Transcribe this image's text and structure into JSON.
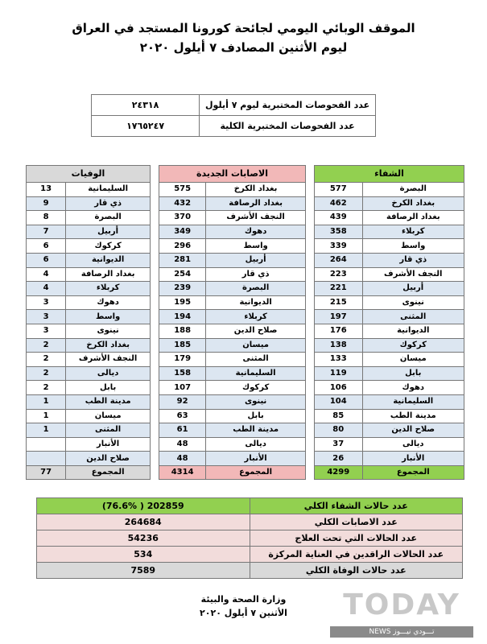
{
  "header": {
    "line1": "الموقف الوبائي اليومي لجائحة كورونا المستجد في العراق",
    "line2": "ليوم الأثنين المصادف ٧ أيلول ٢٠٢٠"
  },
  "tests": [
    {
      "label": "عدد الفحوصات المختبرية ليوم ٧ أيلول",
      "value": "٢٤٣١٨"
    },
    {
      "label": "عدد الفحوصات المختبرية الكلية",
      "value": "١٧٦٥٢٤٧"
    }
  ],
  "colors": {
    "recovered": "#92d050",
    "cases": "#f2b8b8",
    "deaths": "#d9d9d9",
    "alt_row": "#dce6f1",
    "summary_pink": "#f2dcdb"
  },
  "recovered": {
    "title": "الشفاء",
    "total_label": "المجموع",
    "total": "4299",
    "rows": [
      [
        "البصرة",
        "577"
      ],
      [
        "بغداد الكرخ",
        "462"
      ],
      [
        "بغداد الرصافة",
        "439"
      ],
      [
        "كربلاء",
        "358"
      ],
      [
        "واسط",
        "339"
      ],
      [
        "ذي قار",
        "264"
      ],
      [
        "النجف الأشرف",
        "223"
      ],
      [
        "أربيل",
        "221"
      ],
      [
        "نينوى",
        "215"
      ],
      [
        "المثنى",
        "197"
      ],
      [
        "الديوانية",
        "176"
      ],
      [
        "كركوك",
        "138"
      ],
      [
        "ميسان",
        "133"
      ],
      [
        "بابل",
        "119"
      ],
      [
        "دهوك",
        "106"
      ],
      [
        "السليمانية",
        "104"
      ],
      [
        "مدينة الطب",
        "85"
      ],
      [
        "صلاح الدين",
        "80"
      ],
      [
        "ديالى",
        "37"
      ],
      [
        "الأنبار",
        "26"
      ]
    ]
  },
  "cases": {
    "title": "الاصابات الجديدة",
    "total_label": "المجموع",
    "total": "4314",
    "rows": [
      [
        "بغداد الكرخ",
        "575"
      ],
      [
        "بغداد الرصافة",
        "432"
      ],
      [
        "النجف الأشرف",
        "370"
      ],
      [
        "دهوك",
        "349"
      ],
      [
        "واسط",
        "296"
      ],
      [
        "أربيل",
        "281"
      ],
      [
        "ذي قار",
        "254"
      ],
      [
        "البصرة",
        "239"
      ],
      [
        "الديوانية",
        "195"
      ],
      [
        "كربلاء",
        "194"
      ],
      [
        "صلاح الدين",
        "188"
      ],
      [
        "ميسان",
        "185"
      ],
      [
        "المثنى",
        "179"
      ],
      [
        "السليمانية",
        "158"
      ],
      [
        "كركوك",
        "107"
      ],
      [
        "نينوى",
        "92"
      ],
      [
        "بابل",
        "63"
      ],
      [
        "مدينة الطب",
        "61"
      ],
      [
        "ديالى",
        "48"
      ],
      [
        "الأنبار",
        "48"
      ]
    ]
  },
  "deaths": {
    "title": "الوفيات",
    "total_label": "المجموع",
    "total": "77",
    "rows": [
      [
        "السليمانية",
        "13"
      ],
      [
        "ذي قار",
        "9"
      ],
      [
        "البصرة",
        "8"
      ],
      [
        "أربيل",
        "7"
      ],
      [
        "كركوك",
        "6"
      ],
      [
        "الديوانية",
        "6"
      ],
      [
        "بغداد الرصافة",
        "4"
      ],
      [
        "كربلاء",
        "4"
      ],
      [
        "دهوك",
        "3"
      ],
      [
        "واسط",
        "3"
      ],
      [
        "نينوى",
        "3"
      ],
      [
        "بغداد الكرخ",
        "2"
      ],
      [
        "النجف الأشرف",
        "2"
      ],
      [
        "ديالى",
        "2"
      ],
      [
        "بابل",
        "2"
      ],
      [
        "مدينة الطب",
        "1"
      ],
      [
        "ميسان",
        "1"
      ],
      [
        "المثنى",
        "1"
      ],
      [
        "الأنبار",
        ""
      ],
      [
        "صلاح الدين",
        ""
      ]
    ]
  },
  "summary": [
    {
      "label": "عدد حالات الشفاء الكلي",
      "value": "(76.6% )   202859"
    },
    {
      "label": "عدد الاصابات الكلي",
      "value": "264684"
    },
    {
      "label": "عدد الحالات التي تحت العلاج",
      "value": "54236"
    },
    {
      "label": "عدد الحالات الراقدين في العناية المركزة",
      "value": "534"
    },
    {
      "label": "عدد حالات الوفاة الكلي",
      "value": "7589"
    }
  ],
  "footer": {
    "line1": "وزارة الصحة والبيئة",
    "line2": "الأثنين ٧ أيلول ٢٠٢٠"
  },
  "watermark": {
    "logo": "TODAY",
    "sub": "NEWS تـــودي نيـــوز"
  }
}
